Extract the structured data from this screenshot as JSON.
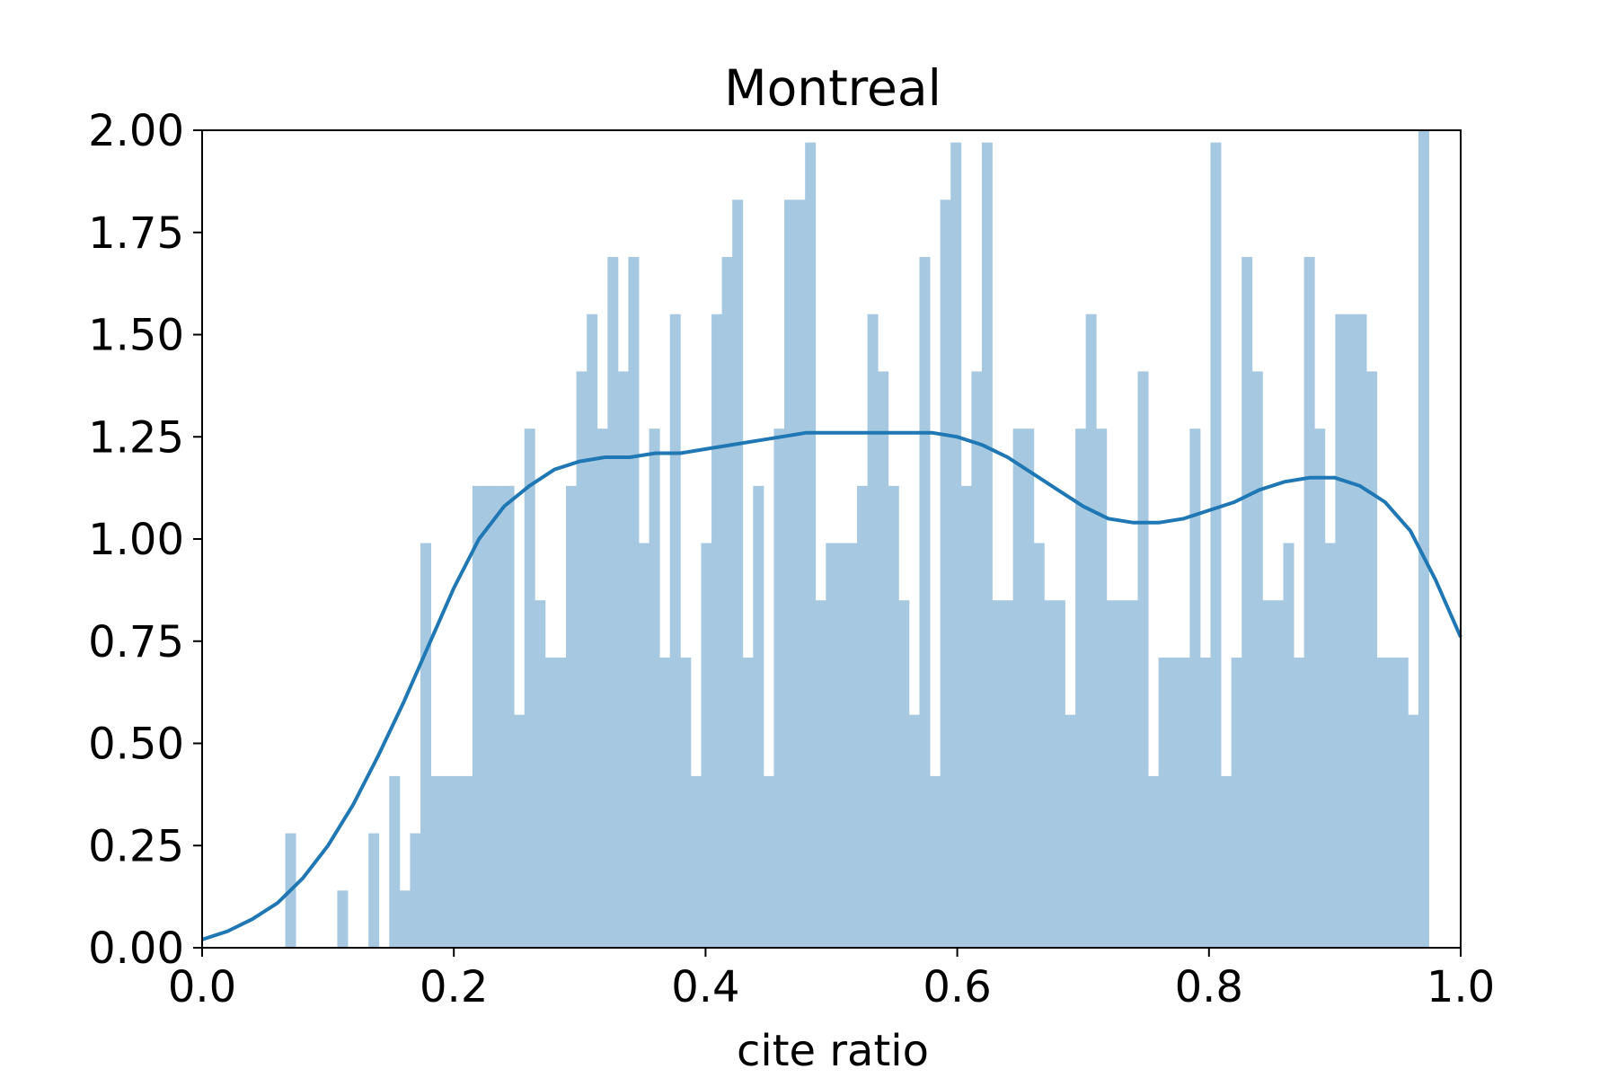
{
  "chart_data": {
    "type": "bar",
    "title": "Montreal",
    "xlabel": "cite ratio",
    "ylabel": "",
    "xlim": [
      0.0,
      1.0
    ],
    "ylim": [
      0.0,
      2.0
    ],
    "xticks": [
      "0.0",
      "0.2",
      "0.4",
      "0.6",
      "0.8",
      "1.0"
    ],
    "yticks": [
      "0.00",
      "0.25",
      "0.50",
      "0.75",
      "1.00",
      "1.25",
      "1.50",
      "1.75",
      "2.00"
    ],
    "grid": false,
    "legend": "none",
    "colors": {
      "hist": "#a6c8e0",
      "kde": "#1f77b4"
    },
    "histogram": {
      "bin_width": 0.00826,
      "bin_start": 0.0,
      "values": [
        0,
        0,
        0,
        0,
        0,
        0,
        0,
        0,
        0.28,
        0,
        0,
        0,
        0,
        0.14,
        0,
        0,
        0.28,
        0,
        0.42,
        0.14,
        0.28,
        0.99,
        0.42,
        0.42,
        0.42,
        0.42,
        1.13,
        1.13,
        1.13,
        1.13,
        0.57,
        1.27,
        0.85,
        0.71,
        0.71,
        1.13,
        1.41,
        1.55,
        1.27,
        1.69,
        1.41,
        1.69,
        0.99,
        1.27,
        0.71,
        1.55,
        0.71,
        0.42,
        0.99,
        1.55,
        1.69,
        1.83,
        0.71,
        1.13,
        0.42,
        1.27,
        1.83,
        1.83,
        1.97,
        0.85,
        0.99,
        0.99,
        0.99,
        1.13,
        1.55,
        1.41,
        1.13,
        0.85,
        0.57,
        1.69,
        0.42,
        1.83,
        1.97,
        1.13,
        1.41,
        1.97,
        0.85,
        0.85,
        1.27,
        1.27,
        0.99,
        0.85,
        0.85,
        0.57,
        1.27,
        1.55,
        1.27,
        0.85,
        0.85,
        0.85,
        1.41,
        0.42,
        0.71,
        0.71,
        0.71,
        1.27,
        0.71,
        1.97,
        0.42,
        0.71,
        1.69,
        1.41,
        0.85,
        0.85,
        0.99,
        0.71,
        1.69,
        1.27,
        0.99,
        1.55,
        1.55,
        1.55,
        1.41,
        0.71,
        0.71,
        0.71,
        0.57,
        2.0
      ]
    },
    "kde": {
      "x": [
        0.0,
        0.02,
        0.04,
        0.06,
        0.08,
        0.1,
        0.12,
        0.14,
        0.16,
        0.18,
        0.2,
        0.22,
        0.24,
        0.26,
        0.28,
        0.3,
        0.32,
        0.34,
        0.36,
        0.38,
        0.4,
        0.42,
        0.44,
        0.46,
        0.48,
        0.5,
        0.52,
        0.54,
        0.56,
        0.58,
        0.6,
        0.62,
        0.64,
        0.66,
        0.68,
        0.7,
        0.72,
        0.74,
        0.76,
        0.78,
        0.8,
        0.82,
        0.84,
        0.86,
        0.88,
        0.9,
        0.92,
        0.94,
        0.96,
        0.98,
        1.0
      ],
      "y": [
        0.02,
        0.04,
        0.07,
        0.11,
        0.17,
        0.25,
        0.35,
        0.47,
        0.6,
        0.74,
        0.88,
        1.0,
        1.08,
        1.13,
        1.17,
        1.19,
        1.2,
        1.2,
        1.21,
        1.21,
        1.22,
        1.23,
        1.24,
        1.25,
        1.26,
        1.26,
        1.26,
        1.26,
        1.26,
        1.26,
        1.25,
        1.23,
        1.2,
        1.16,
        1.12,
        1.08,
        1.05,
        1.04,
        1.04,
        1.05,
        1.07,
        1.09,
        1.12,
        1.14,
        1.15,
        1.15,
        1.13,
        1.09,
        1.02,
        0.9,
        0.76
      ]
    }
  }
}
